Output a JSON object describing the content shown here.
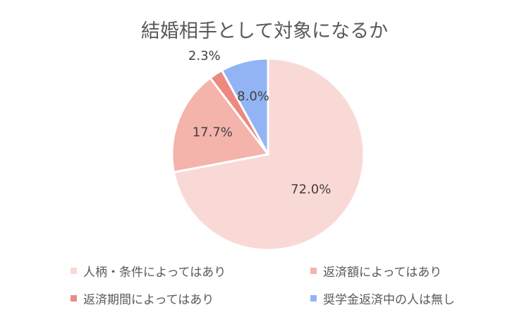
{
  "chart_data": {
    "type": "pie",
    "title": "結婚相手として対象になるか",
    "categories": [
      "人柄・条件によってはあり",
      "返済額によってはあり",
      "返済期間によってはあり",
      "奨学金返済中の人は無し"
    ],
    "values": [
      72.0,
      17.7,
      2.3,
      8.0
    ],
    "labels": [
      "72.0%",
      "17.7%",
      "2.3%",
      "8.0%"
    ],
    "colors": [
      "#f9d9d6",
      "#f4b3ab",
      "#ec8a82",
      "#92b4f5"
    ],
    "legend_position": "bottom"
  }
}
